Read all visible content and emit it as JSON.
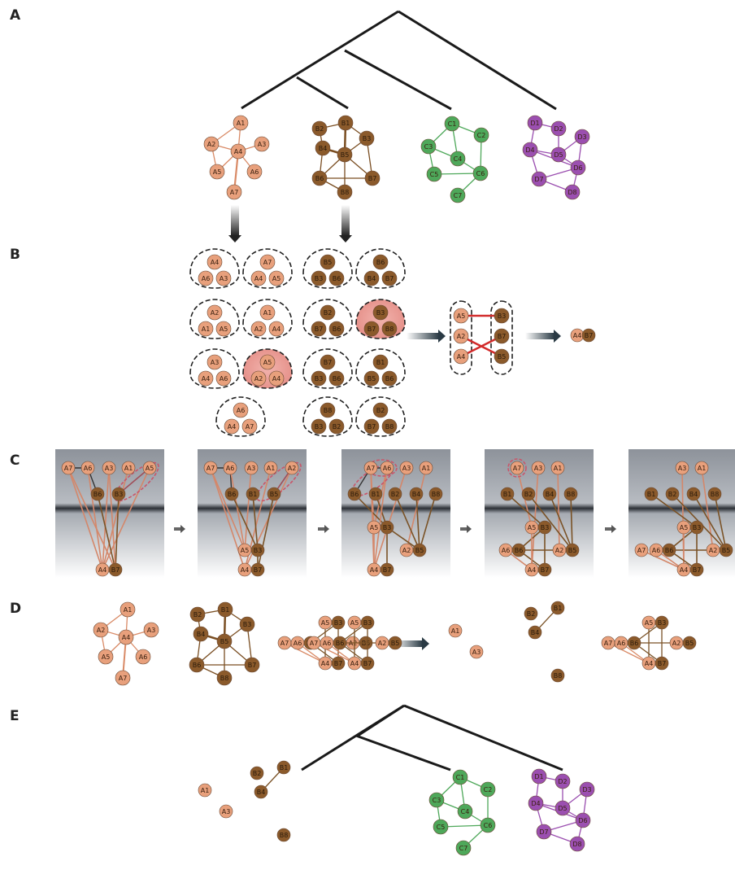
{
  "panels": [
    "A",
    "B",
    "C",
    "D",
    "E"
  ],
  "colors": {
    "A": "#e8a07c",
    "B": "#8b5a2b",
    "C": "#4ea85a",
    "D": "#9b4fb0",
    "A_edge": "#d98a66",
    "B_edge": "#7a4e22",
    "C_edge": "#4ea85a",
    "D_edge": "#9b4fb0",
    "red": "#d22b2b",
    "dash_red": "#c9566a",
    "tree": "#1a1a1a"
  },
  "labels": {
    "A": [
      "A1",
      "A2",
      "A3",
      "A4",
      "A5",
      "A6",
      "A7"
    ],
    "B": [
      "B1",
      "B2",
      "B3",
      "B4",
      "B5",
      "B6",
      "B7",
      "B8"
    ],
    "C": [
      "C1",
      "C2",
      "C3",
      "C4",
      "C5",
      "C6",
      "C7"
    ],
    "D": [
      "D1",
      "D2",
      "D3",
      "D4",
      "D5",
      "D6",
      "D7",
      "D8"
    ]
  }
}
